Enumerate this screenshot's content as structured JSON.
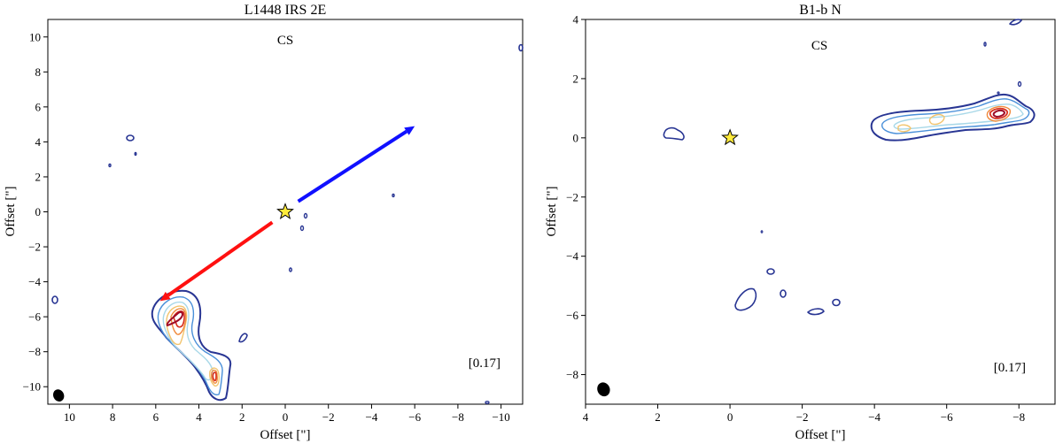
{
  "chart_data": [
    {
      "type": "contour",
      "title": "L1448 IRS 2E",
      "xlabel": "Offset [\"]",
      "ylabel": "Offset [\"]",
      "xlim": [
        11,
        -11
      ],
      "ylim": [
        -11,
        11
      ],
      "xticks": [
        10,
        8,
        6,
        4,
        2,
        0,
        -2,
        -4,
        -6,
        -8,
        -10
      ],
      "yticks": [
        10,
        8,
        6,
        4,
        2,
        0,
        -2,
        -4,
        -6,
        -8,
        -10
      ],
      "line_label": "CS",
      "rms_label": "[0.17]",
      "source": {
        "x": 0,
        "y": 0,
        "marker": "star",
        "color": "#ffeb3b"
      },
      "outflow_arrows": [
        {
          "lobe": "blue",
          "from": [
            -0.6,
            0.6
          ],
          "to": [
            -6.0,
            4.9
          ],
          "color": "#1010ff"
        },
        {
          "lobe": "red",
          "from": [
            0.6,
            -0.6
          ],
          "to": [
            5.8,
            -5.1
          ],
          "color": "#ff1010"
        }
      ],
      "beam": {
        "x": 10.5,
        "y": -10.5
      }
    },
    {
      "type": "contour",
      "title": "B1-b N",
      "xlabel": "Offset [\"]",
      "ylabel": "Offset [\"]",
      "xlim": [
        4,
        -9
      ],
      "ylim": [
        -9,
        4
      ],
      "xticks": [
        4,
        2,
        0,
        -2,
        -4,
        -6,
        -8
      ],
      "yticks": [
        4,
        2,
        0,
        -2,
        -4,
        -6,
        -8
      ],
      "line_label": "CS",
      "rms_label": "[0.17]",
      "source": {
        "x": 0,
        "y": 0,
        "marker": "star",
        "color": "#ffeb3b"
      },
      "beam": {
        "x": 3.5,
        "y": -8.5
      }
    }
  ],
  "colors": {
    "contour_levels": [
      "#283593",
      "#4a90d9",
      "#a8d8e8",
      "#f2c46d",
      "#f08a3c",
      "#d7301f",
      "#9e0a26"
    ]
  }
}
